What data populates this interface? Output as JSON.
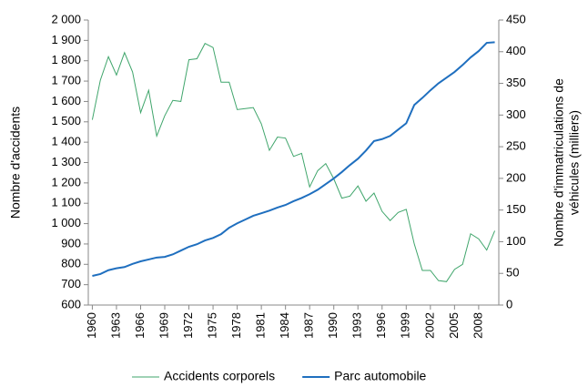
{
  "chart_data": {
    "type": "line",
    "ylabel": "Nombre d'accidents",
    "y2label": [
      "Nombre d'immatriculations de",
      "véhicules (milliers)"
    ],
    "x": [
      1960,
      1961,
      1962,
      1963,
      1964,
      1965,
      1966,
      1967,
      1968,
      1969,
      1970,
      1971,
      1972,
      1973,
      1974,
      1975,
      1976,
      1977,
      1978,
      1979,
      1980,
      1981,
      1982,
      1983,
      1984,
      1985,
      1986,
      1987,
      1988,
      1989,
      1990,
      1991,
      1992,
      1993,
      1994,
      1995,
      1996,
      1997,
      1998,
      1999,
      2000,
      2001,
      2002,
      2003,
      2004,
      2005,
      2006,
      2007,
      2008,
      2009,
      2010
    ],
    "xlim": [
      1959.5,
      2010.5
    ],
    "xticks": [
      1960,
      1963,
      1966,
      1969,
      1972,
      1975,
      1978,
      1981,
      1984,
      1987,
      1990,
      1993,
      1996,
      1999,
      2002,
      2005,
      2008
    ],
    "ylim": [
      600,
      2000
    ],
    "yticks": [
      {
        "value": 600,
        "label": "600"
      },
      {
        "value": 700,
        "label": "700"
      },
      {
        "value": 800,
        "label": "800"
      },
      {
        "value": 900,
        "label": "900"
      },
      {
        "value": 1000,
        "label": "1 000"
      },
      {
        "value": 1100,
        "label": "1 100"
      },
      {
        "value": 1200,
        "label": "1 200"
      },
      {
        "value": 1300,
        "label": "1 300"
      },
      {
        "value": 1400,
        "label": "1 400"
      },
      {
        "value": 1500,
        "label": "1 500"
      },
      {
        "value": 1600,
        "label": "1 600"
      },
      {
        "value": 1700,
        "label": "1 700"
      },
      {
        "value": 1800,
        "label": "1 800"
      },
      {
        "value": 1900,
        "label": "1 900"
      },
      {
        "value": 2000,
        "label": "2 000"
      }
    ],
    "y2lim": [
      0,
      450
    ],
    "y2ticks": [
      0,
      50,
      100,
      150,
      200,
      250,
      300,
      350,
      400,
      450
    ],
    "grid": false,
    "legend": "bottom",
    "series": [
      {
        "name": "Accidents corporels",
        "color": "#3fa56b",
        "width": 1,
        "values": [
          1510,
          1705,
          1820,
          1730,
          1840,
          1745,
          1545,
          1655,
          1430,
          1530,
          1605,
          1600,
          1805,
          1810,
          1885,
          1865,
          1695,
          1695,
          1560,
          1565,
          1570,
          1490,
          1360,
          1425,
          1420,
          1330,
          1345,
          1180,
          1260,
          1295,
          1220,
          1125,
          1135,
          1185,
          1110,
          1150,
          1060,
          1015,
          1055,
          1070,
          900,
          770,
          770,
          720,
          715,
          775,
          800,
          950,
          925,
          870,
          965
        ]
      },
      {
        "name": "Parc automobile",
        "color": "#1f6fbf",
        "width": 2,
        "axis": "y2",
        "values": [
          46,
          49,
          55,
          58,
          60,
          65,
          69,
          72,
          75,
          76,
          80,
          86,
          92,
          96,
          102,
          106,
          112,
          122,
          129,
          135,
          141,
          145,
          149,
          154,
          158,
          164,
          169,
          175,
          182,
          191,
          200,
          210,
          221,
          231,
          244,
          259,
          262,
          267,
          277,
          287,
          316,
          327,
          339,
          350,
          359,
          368,
          379,
          391,
          401,
          414,
          415
        ]
      }
    ]
  }
}
